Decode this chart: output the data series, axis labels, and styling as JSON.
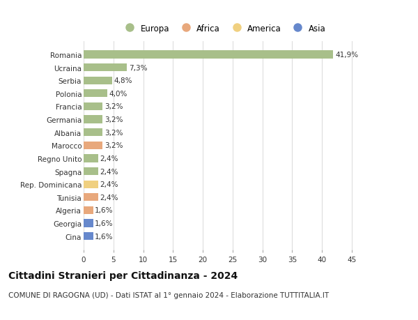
{
  "countries": [
    "Romania",
    "Ucraina",
    "Serbia",
    "Polonia",
    "Francia",
    "Germania",
    "Albania",
    "Marocco",
    "Regno Unito",
    "Spagna",
    "Rep. Dominicana",
    "Tunisia",
    "Algeria",
    "Georgia",
    "Cina"
  ],
  "values": [
    41.9,
    7.3,
    4.8,
    4.0,
    3.2,
    3.2,
    3.2,
    3.2,
    2.4,
    2.4,
    2.4,
    2.4,
    1.6,
    1.6,
    1.6
  ],
  "labels": [
    "41,9%",
    "7,3%",
    "4,8%",
    "4,0%",
    "3,2%",
    "3,2%",
    "3,2%",
    "3,2%",
    "2,4%",
    "2,4%",
    "2,4%",
    "2,4%",
    "1,6%",
    "1,6%",
    "1,6%"
  ],
  "continents": [
    "Europa",
    "Europa",
    "Europa",
    "Europa",
    "Europa",
    "Europa",
    "Europa",
    "Africa",
    "Europa",
    "Europa",
    "America",
    "Africa",
    "Africa",
    "Asia",
    "Asia"
  ],
  "continent_colors": {
    "Europa": "#a8bf8a",
    "Africa": "#e8a87c",
    "America": "#f0d080",
    "Asia": "#6688cc"
  },
  "xlim": [
    0,
    47
  ],
  "xticks": [
    0,
    5,
    10,
    15,
    20,
    25,
    30,
    35,
    40,
    45
  ],
  "title": "Cittadini Stranieri per Cittadinanza - 2024",
  "subtitle": "COMUNE DI RAGOGNA (UD) - Dati ISTAT al 1° gennaio 2024 - Elaborazione TUTTITALIA.IT",
  "bg_color": "#ffffff",
  "grid_color": "#dddddd",
  "bar_height": 0.6,
  "title_fontsize": 10,
  "subtitle_fontsize": 7.5,
  "label_fontsize": 7.5,
  "tick_fontsize": 7.5,
  "legend_fontsize": 8.5
}
